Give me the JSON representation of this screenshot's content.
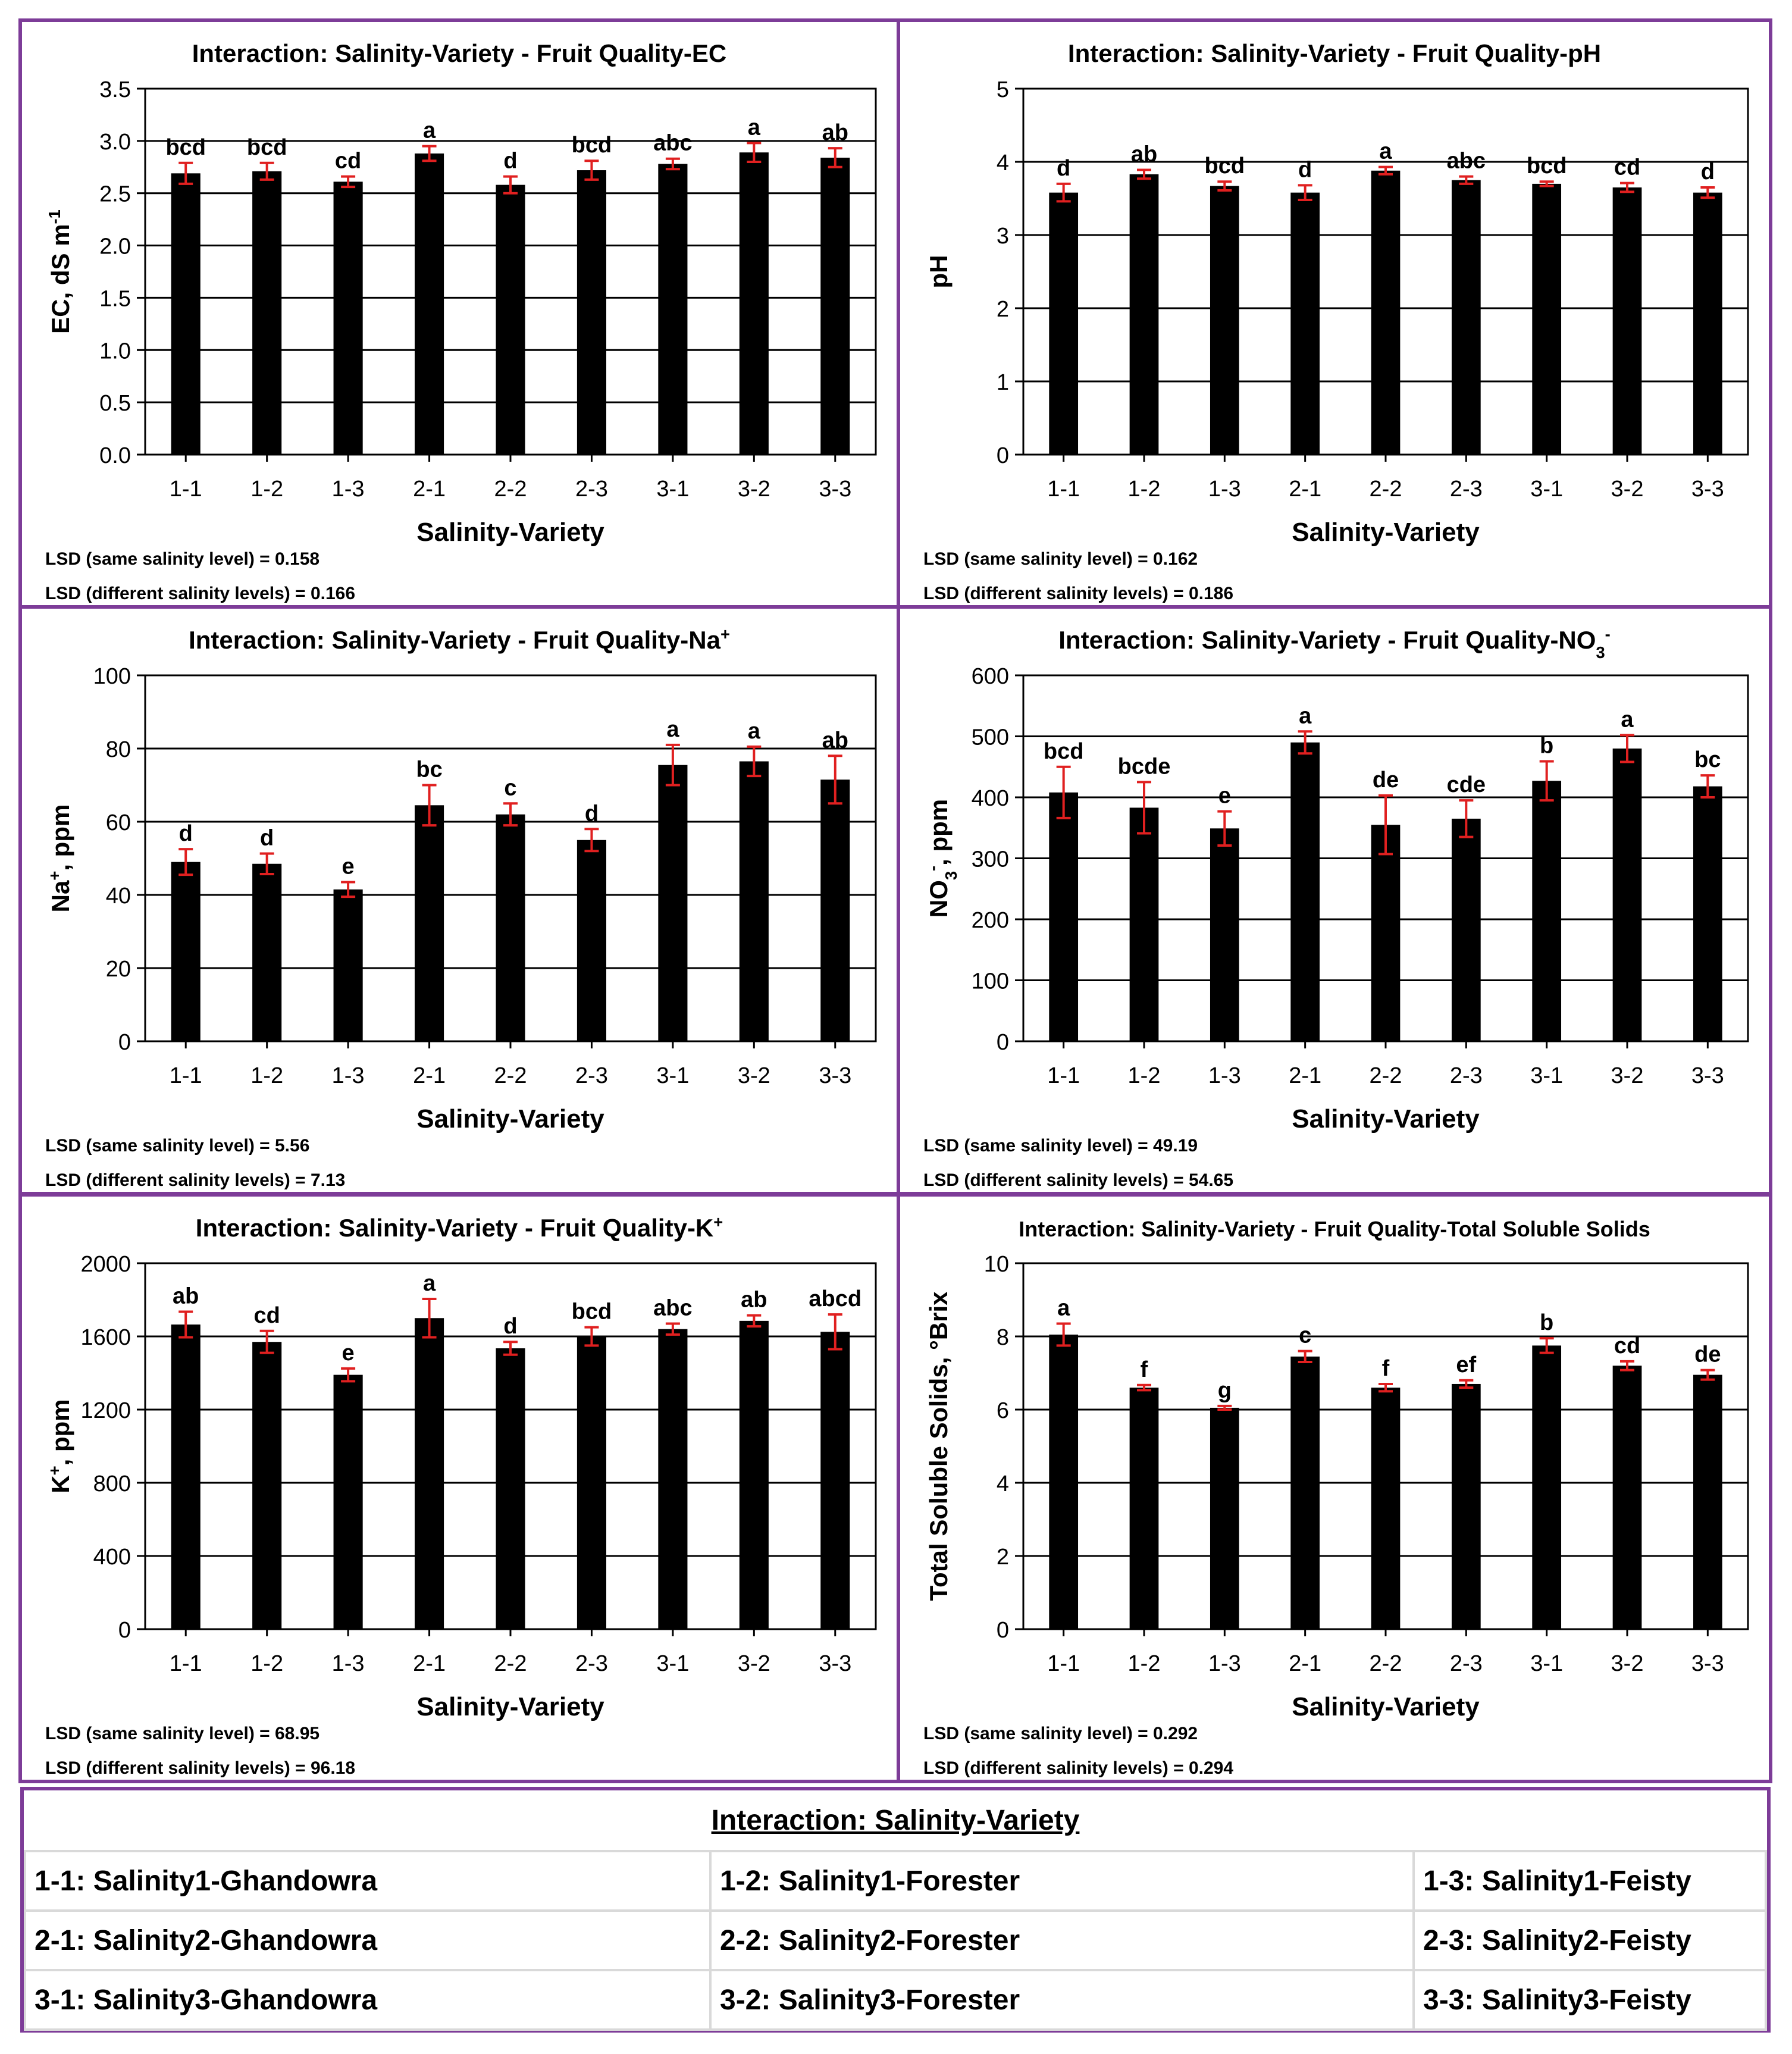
{
  "colors": {
    "frame": "#7d3c98",
    "bar": "#000000",
    "error": "#e02020",
    "grid": "#000000"
  },
  "chart_data": [
    {
      "type": "bar",
      "title": "Interaction: Salinity-Variety - Fruit Quality-EC",
      "title_sup": "",
      "xlabel": "Salinity-Variety",
      "ylabel": "EC, dS m",
      "ylabel_sup": "-1",
      "ylabel_sub": "",
      "ylim": [
        0,
        3.5
      ],
      "yticks": [
        "0.0",
        "0.5",
        "1.0",
        "1.5",
        "2.0",
        "2.5",
        "3.0",
        "3.5"
      ],
      "categories": [
        "1-1",
        "1-2",
        "1-3",
        "2-1",
        "2-2",
        "2-3",
        "3-1",
        "3-2",
        "3-3"
      ],
      "values": [
        2.69,
        2.71,
        2.61,
        2.88,
        2.58,
        2.72,
        2.78,
        2.89,
        2.84
      ],
      "errors": [
        0.1,
        0.08,
        0.05,
        0.07,
        0.08,
        0.09,
        0.05,
        0.09,
        0.09
      ],
      "labels": [
        "bcd",
        "bcd",
        "cd",
        "a",
        "d",
        "bcd",
        "abc",
        "a",
        "ab"
      ],
      "lsd_same": "LSD (same salinity level) = 0.158",
      "lsd_diff": "LSD (different salinity levels) = 0.166"
    },
    {
      "type": "bar",
      "title": "Interaction: Salinity-Variety - Fruit Quality-pH",
      "title_sup": "",
      "xlabel": "Salinity-Variety",
      "ylabel": "pH",
      "ylabel_sup": "",
      "ylabel_sub": "",
      "ylim": [
        0,
        5
      ],
      "yticks": [
        "0",
        "1",
        "2",
        "3",
        "4",
        "5"
      ],
      "categories": [
        "1-1",
        "1-2",
        "1-3",
        "2-1",
        "2-2",
        "2-3",
        "3-1",
        "3-2",
        "3-3"
      ],
      "values": [
        3.58,
        3.83,
        3.67,
        3.58,
        3.88,
        3.75,
        3.7,
        3.65,
        3.58
      ],
      "errors": [
        0.12,
        0.06,
        0.06,
        0.1,
        0.05,
        0.05,
        0.03,
        0.06,
        0.07
      ],
      "labels": [
        "d",
        "ab",
        "bcd",
        "d",
        "a",
        "abc",
        "bcd",
        "cd",
        "d"
      ],
      "lsd_same": "LSD (same salinity level) = 0.162",
      "lsd_diff": "LSD (different salinity levels) = 0.186"
    },
    {
      "type": "bar",
      "title": "Interaction: Salinity-Variety - Fruit Quality-Na",
      "title_sup": "+",
      "xlabel": "Salinity-Variety",
      "ylabel": "Na",
      "ylabel_sup": "+",
      "ylabel_sub": "",
      "ylabel_tail": ", ppm",
      "ylim": [
        0,
        100
      ],
      "yticks": [
        "0",
        "20",
        "40",
        "60",
        "80",
        "100"
      ],
      "categories": [
        "1-1",
        "1-2",
        "1-3",
        "2-1",
        "2-2",
        "2-3",
        "3-1",
        "3-2",
        "3-3"
      ],
      "values": [
        49,
        48.5,
        41.5,
        64.5,
        62,
        55,
        75.5,
        76.5,
        71.5
      ],
      "errors": [
        3.5,
        2.8,
        2,
        5.5,
        3,
        3,
        5.5,
        4,
        6.5
      ],
      "labels": [
        "d",
        "d",
        "e",
        "bc",
        "c",
        "d",
        "a",
        "a",
        "ab"
      ],
      "lsd_same": "LSD (same salinity level) = 5.56",
      "lsd_diff": "LSD (different salinity levels) = 7.13"
    },
    {
      "type": "bar",
      "title": "Interaction: Salinity-Variety - Fruit Quality-NO",
      "title_sub": "3",
      "title_sup": "-",
      "xlabel": "Salinity-Variety",
      "ylabel": "NO",
      "ylabel_sub": "3",
      "ylabel_sup": "-",
      "ylabel_tail": ", ppm",
      "ylim": [
        0,
        600
      ],
      "yticks": [
        "0",
        "100",
        "200",
        "300",
        "400",
        "500",
        "600"
      ],
      "categories": [
        "1-1",
        "1-2",
        "1-3",
        "2-1",
        "2-2",
        "2-3",
        "3-1",
        "3-2",
        "3-3"
      ],
      "values": [
        408,
        383,
        349,
        490,
        355,
        365,
        427,
        480,
        418
      ],
      "errors": [
        42,
        42,
        28,
        18,
        48,
        30,
        32,
        22,
        18
      ],
      "labels": [
        "bcd",
        "bcde",
        "e",
        "a",
        "de",
        "cde",
        "b",
        "a",
        "bc"
      ],
      "lsd_same": "LSD (same salinity level) = 49.19",
      "lsd_diff": "LSD (different salinity levels) = 54.65"
    },
    {
      "type": "bar",
      "title": "Interaction: Salinity-Variety - Fruit Quality-K",
      "title_sup": "+",
      "xlabel": "Salinity-Variety",
      "ylabel": "K",
      "ylabel_sup": "+",
      "ylabel_sub": "",
      "ylabel_tail": ", ppm",
      "ylim": [
        0,
        2000
      ],
      "yticks": [
        "0",
        "400",
        "800",
        "1200",
        "1600",
        "2000"
      ],
      "categories": [
        "1-1",
        "1-2",
        "1-3",
        "2-1",
        "2-2",
        "2-3",
        "3-1",
        "3-2",
        "3-3"
      ],
      "values": [
        1665,
        1570,
        1390,
        1700,
        1535,
        1600,
        1640,
        1685,
        1625
      ],
      "errors": [
        70,
        60,
        35,
        105,
        35,
        50,
        30,
        30,
        95
      ],
      "labels": [
        "ab",
        "cd",
        "e",
        "a",
        "d",
        "bcd",
        "abc",
        "ab",
        "abcd"
      ],
      "lsd_same": "LSD (same salinity level) = 68.95",
      "lsd_diff": "LSD (different salinity levels) = 96.18"
    },
    {
      "type": "bar",
      "title": "Interaction: Salinity-Variety  - Fruit Quality-Total  Soluble Solids",
      "title_sup": "",
      "xlabel": "Salinity-Variety",
      "ylabel": "Total Soluble Solids, °Brix",
      "ylabel_sup": "",
      "ylabel_sub": "",
      "ylim": [
        0,
        10
      ],
      "yticks": [
        "0",
        "2",
        "4",
        "6",
        "8",
        "10"
      ],
      "categories": [
        "1-1",
        "1-2",
        "1-3",
        "2-1",
        "2-2",
        "2-3",
        "3-1",
        "3-2",
        "3-3"
      ],
      "values": [
        8.05,
        6.6,
        6.05,
        7.45,
        6.6,
        6.7,
        7.75,
        7.2,
        6.95
      ],
      "errors": [
        0.3,
        0.07,
        0.05,
        0.15,
        0.1,
        0.1,
        0.2,
        0.12,
        0.13
      ],
      "labels": [
        "a",
        "f",
        "g",
        "c",
        "f",
        "ef",
        "b",
        "cd",
        "de"
      ],
      "lsd_same": "LSD (same salinity level) = 0.292",
      "lsd_diff": "LSD (different salinity levels) = 0.294"
    }
  ],
  "legend": {
    "title": "Interaction: Salinity-Variety",
    "rows": [
      [
        "1-1: Salinity1-Ghandowra",
        "1-2: Salinity1-Forester",
        "1-3: Salinity1-Feisty"
      ],
      [
        "2-1: Salinity2-Ghandowra",
        "2-2: Salinity2-Forester",
        "2-3: Salinity2-Feisty"
      ],
      [
        "3-1: Salinity3-Ghandowra",
        "3-2: Salinity3-Forester",
        "3-3: Salinity3-Feisty"
      ]
    ]
  }
}
